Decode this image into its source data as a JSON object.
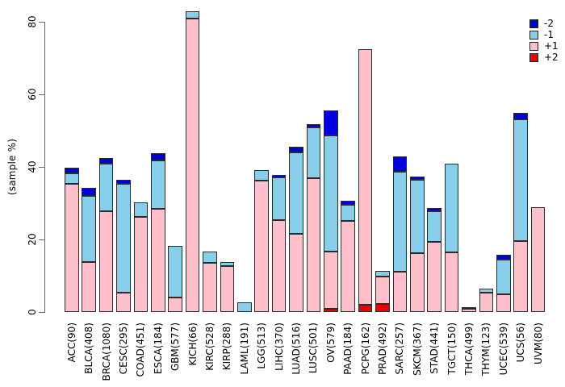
{
  "chart_data": {
    "type": "bar",
    "stacked": true,
    "title": "",
    "xlabel": "",
    "ylabel": "(sample %)",
    "ylim": [
      0,
      85
    ],
    "yticks": [
      0,
      20,
      40,
      60,
      80
    ],
    "grid": false,
    "legend_position": "top-right",
    "stack_order_bottom_to_top": [
      "+2",
      "+1",
      "-1",
      "-2"
    ],
    "categories": [
      "ACC(90)",
      "BLCA(408)",
      "BRCA(1080)",
      "CESC(295)",
      "COAD(451)",
      "ESCA(184)",
      "GBM(577)",
      "KICH(66)",
      "KIRC(528)",
      "KIRP(288)",
      "LAML(191)",
      "LGG(513)",
      "LIHC(370)",
      "LUAD(516)",
      "LUSC(501)",
      "OV(579)",
      "PAAD(184)",
      "PCPG(162)",
      "PRAD(492)",
      "SARC(257)",
      "SKCM(367)",
      "STAD(441)",
      "TGCT(150)",
      "THCA(499)",
      "THYM(123)",
      "UCEC(539)",
      "UCS(56)",
      "UVM(80)"
    ],
    "series": [
      {
        "name": "-2",
        "color": "#0000dc",
        "values": [
          1.6,
          2.1,
          1.4,
          1.1,
          0,
          2.1,
          0,
          0,
          0,
          0,
          0,
          0,
          0.6,
          1.6,
          0.9,
          6.8,
          1.0,
          0,
          0,
          4.2,
          0.8,
          0.9,
          0,
          0,
          0,
          1.3,
          2.0,
          0
        ]
      },
      {
        "name": "-1",
        "color": "#87ceeb",
        "values": [
          2.9,
          18.3,
          13.1,
          30.0,
          4.0,
          13.3,
          14.2,
          1.9,
          3.1,
          1.2,
          2.7,
          3.0,
          11.7,
          22.3,
          14.0,
          32.0,
          4.5,
          0,
          1.6,
          27.5,
          20.3,
          8.5,
          24.3,
          0.6,
          1.1,
          9.6,
          33.5,
          0
        ]
      },
      {
        "name": "+1",
        "color": "#ffc0cb",
        "values": [
          35.3,
          13.8,
          27.9,
          5.3,
          26.2,
          28.4,
          4.0,
          80.9,
          13.6,
          12.7,
          0,
          36.2,
          25.4,
          21.6,
          37.0,
          15.7,
          25.1,
          70.5,
          7.6,
          11.2,
          16.2,
          19.3,
          16.5,
          0.8,
          5.3,
          4.9,
          19.5,
          28.8
        ]
      },
      {
        "name": "+2",
        "color": "#ee0000",
        "values": [
          0,
          0,
          0,
          0,
          0,
          0,
          0,
          0,
          0,
          0,
          0,
          0,
          0,
          0,
          0,
          1.0,
          0,
          2.0,
          2.2,
          0,
          0,
          0,
          0,
          0,
          0,
          0,
          0,
          0
        ]
      }
    ],
    "legend": [
      {
        "label": "-2",
        "color": "#0000dc"
      },
      {
        "label": "-1",
        "color": "#87ceeb"
      },
      {
        "label": "+1",
        "color": "#ffc0cb"
      },
      {
        "label": "+2",
        "color": "#ee0000"
      }
    ],
    "colors": {
      "axis": "#666666",
      "bar_border": "#2b2b2b",
      "background": "#ffffff"
    }
  }
}
